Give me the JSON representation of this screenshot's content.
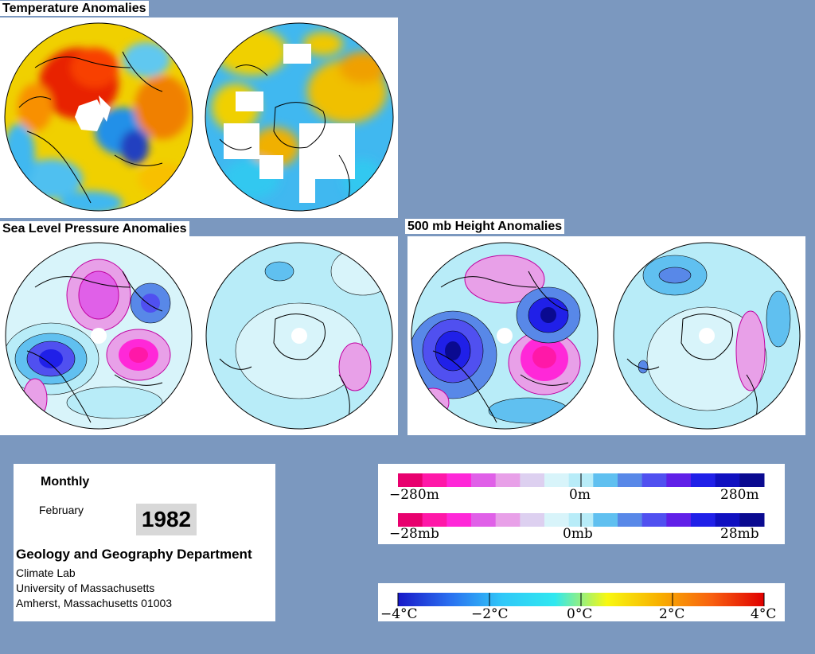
{
  "titles": {
    "temperature": "Temperature Anomalies",
    "slp": "Sea Level Pressure Anomalies",
    "height500": "500 mb Height Anomalies"
  },
  "info": {
    "period": "Monthly",
    "month": "February",
    "year": "1982",
    "department": "Geology and Geography Department",
    "lab": "Climate Lab",
    "university": "University of Massachusetts",
    "address": "Amherst, Massachusetts 01003"
  },
  "legend_height": {
    "labels": [
      "−280m",
      "0m",
      "280m"
    ],
    "colors": [
      "#e8006e",
      "#ff18a8",
      "#ff28d8",
      "#e060e8",
      "#e8a0e8",
      "#ddd0f0",
      "#d8f4fa",
      "#b8ecf8",
      "#60c0f0",
      "#5888e8",
      "#5050f0",
      "#6020e8",
      "#2020e8",
      "#1010c0",
      "#0a0a90"
    ]
  },
  "legend_pressure": {
    "labels": [
      "−28mb",
      "0mb",
      "28mb"
    ],
    "colors": [
      "#e8006e",
      "#ff18a8",
      "#ff28d8",
      "#e060e8",
      "#e8a0e8",
      "#ddd0f0",
      "#d8f4fa",
      "#b8ecf8",
      "#60c0f0",
      "#5888e8",
      "#5050f0",
      "#6020e8",
      "#2020e8",
      "#1010c0",
      "#0a0a90"
    ]
  },
  "legend_temperature": {
    "labels": [
      "−4°C",
      "−2°C",
      "0°C",
      "2°C",
      "4°C"
    ],
    "gradient": [
      "#1818c8",
      "#2a70f0",
      "#30c8f8",
      "#30e8f0",
      "#f8f810",
      "#f8b000",
      "#f86010",
      "#e00000"
    ]
  }
}
